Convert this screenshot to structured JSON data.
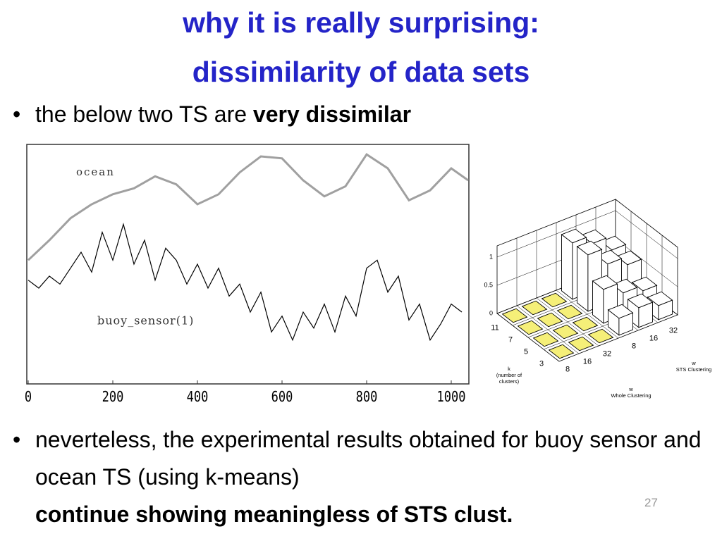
{
  "title": [
    "why it is really surprising:",
    "dissimilarity of data sets"
  ],
  "bullets": [
    {
      "text": "the below two TS are ",
      "bold": "very dissimilar"
    },
    {
      "text": "neverteless, the experimental results obtained for buoy sensor and ocean TS (using k-means)",
      "bold": "continue showing meaningless of STS clust."
    }
  ],
  "slide_number": "27",
  "chart_data": [
    {
      "type": "line",
      "xlim": [
        0,
        1040
      ],
      "ylim": [
        0,
        6
      ],
      "xticks": [
        0,
        200,
        400,
        600,
        800,
        1000
      ],
      "series": [
        {
          "name": "ocean",
          "color": "#a0a0a0",
          "x": [
            0,
            50,
            100,
            150,
            200,
            250,
            300,
            350,
            400,
            450,
            500,
            550,
            600,
            650,
            700,
            750,
            800,
            850,
            900,
            950,
            1000,
            1040
          ],
          "values": [
            3.1,
            3.6,
            4.15,
            4.5,
            4.75,
            4.9,
            5.2,
            5.0,
            4.5,
            4.75,
            5.3,
            5.7,
            5.65,
            5.1,
            4.7,
            4.95,
            5.75,
            5.4,
            4.6,
            4.85,
            5.4,
            5.1
          ]
        },
        {
          "name": "buoy_sensor(1)",
          "color": "#000000",
          "x": [
            0,
            25,
            50,
            75,
            100,
            125,
            150,
            175,
            200,
            225,
            250,
            275,
            300,
            325,
            350,
            375,
            400,
            425,
            450,
            475,
            500,
            525,
            550,
            575,
            600,
            625,
            650,
            675,
            700,
            725,
            750,
            775,
            800,
            825,
            850,
            875,
            900,
            925,
            950,
            975,
            1000,
            1025
          ],
          "values": [
            2.6,
            2.4,
            2.7,
            2.5,
            2.9,
            3.3,
            2.8,
            3.8,
            3.1,
            4.0,
            3.0,
            3.6,
            2.6,
            3.4,
            3.1,
            2.5,
            3.0,
            2.4,
            2.9,
            2.2,
            2.5,
            1.8,
            2.3,
            1.3,
            1.7,
            1.1,
            1.8,
            1.4,
            2.0,
            1.3,
            2.2,
            1.7,
            2.9,
            3.1,
            2.3,
            2.7,
            1.6,
            2.0,
            1.1,
            1.5,
            2.0,
            1.8
          ]
        }
      ]
    },
    {
      "type": "bar3d",
      "zlim": [
        0,
        1.2
      ],
      "zticks": [
        0,
        0.5,
        1
      ],
      "k_label": [
        "k",
        "(number of",
        "clusters)"
      ],
      "k": [
        11,
        7,
        5,
        3
      ],
      "whole_label": [
        "w",
        "Whole Clustering"
      ],
      "whole_w": [
        8,
        16,
        32
      ],
      "sts_label": [
        "w",
        "STS Clustering"
      ],
      "sts_w": [
        8,
        16,
        32
      ],
      "whole_color": "#f5ef78",
      "sts_color": "#ffffff",
      "whole_values": [
        [
          0,
          0,
          0
        ],
        [
          0,
          0,
          0
        ],
        [
          0,
          0,
          0
        ],
        [
          0,
          0,
          0
        ]
      ],
      "sts_values": [
        [
          1.0,
          0.85,
          0.6
        ],
        [
          1.0,
          0.7,
          0.55
        ],
        [
          0.6,
          0.4,
          0.3
        ],
        [
          0.3,
          0.35,
          0.25
        ]
      ]
    }
  ]
}
